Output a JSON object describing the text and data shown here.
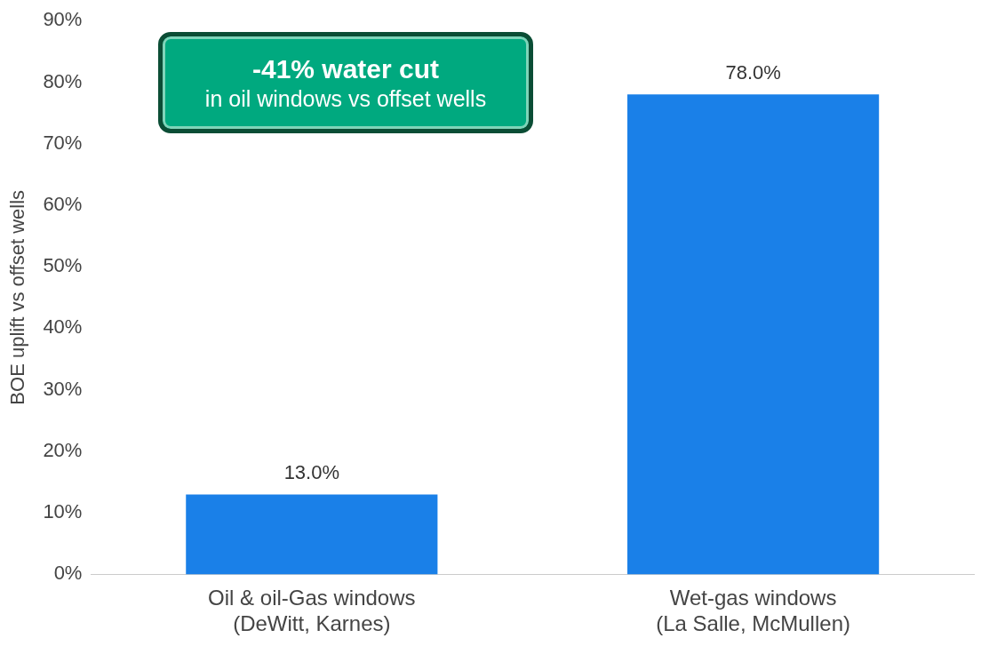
{
  "chart_data": {
    "type": "bar",
    "categories": [
      "Oil & oil-Gas windows\n(DeWitt, Karnes)",
      "Wet-gas windows\n(La Salle, McMullen)"
    ],
    "values": [
      13,
      78
    ],
    "color": "#1a80e8",
    "value_labels": [
      "13.0%",
      "78.0%"
    ],
    "ylabel": "BOE uplift vs offset wells",
    "ylim": [
      0,
      90
    ],
    "yticks": [
      {
        "value": 0,
        "label": "0%"
      },
      {
        "value": 10,
        "label": "10%"
      },
      {
        "value": 20,
        "label": "20%"
      },
      {
        "value": 30,
        "label": "30%"
      },
      {
        "value": 40,
        "label": "40%"
      },
      {
        "value": 50,
        "label": "50%"
      },
      {
        "value": 60,
        "label": "60%"
      },
      {
        "value": 70,
        "label": "70%"
      },
      {
        "value": 80,
        "label": "80%"
      },
      {
        "value": 90,
        "label": "90%"
      }
    ],
    "grid": false,
    "legend": false,
    "annotations": [
      "-41% water cut",
      "in oil windows vs offset wells"
    ]
  }
}
